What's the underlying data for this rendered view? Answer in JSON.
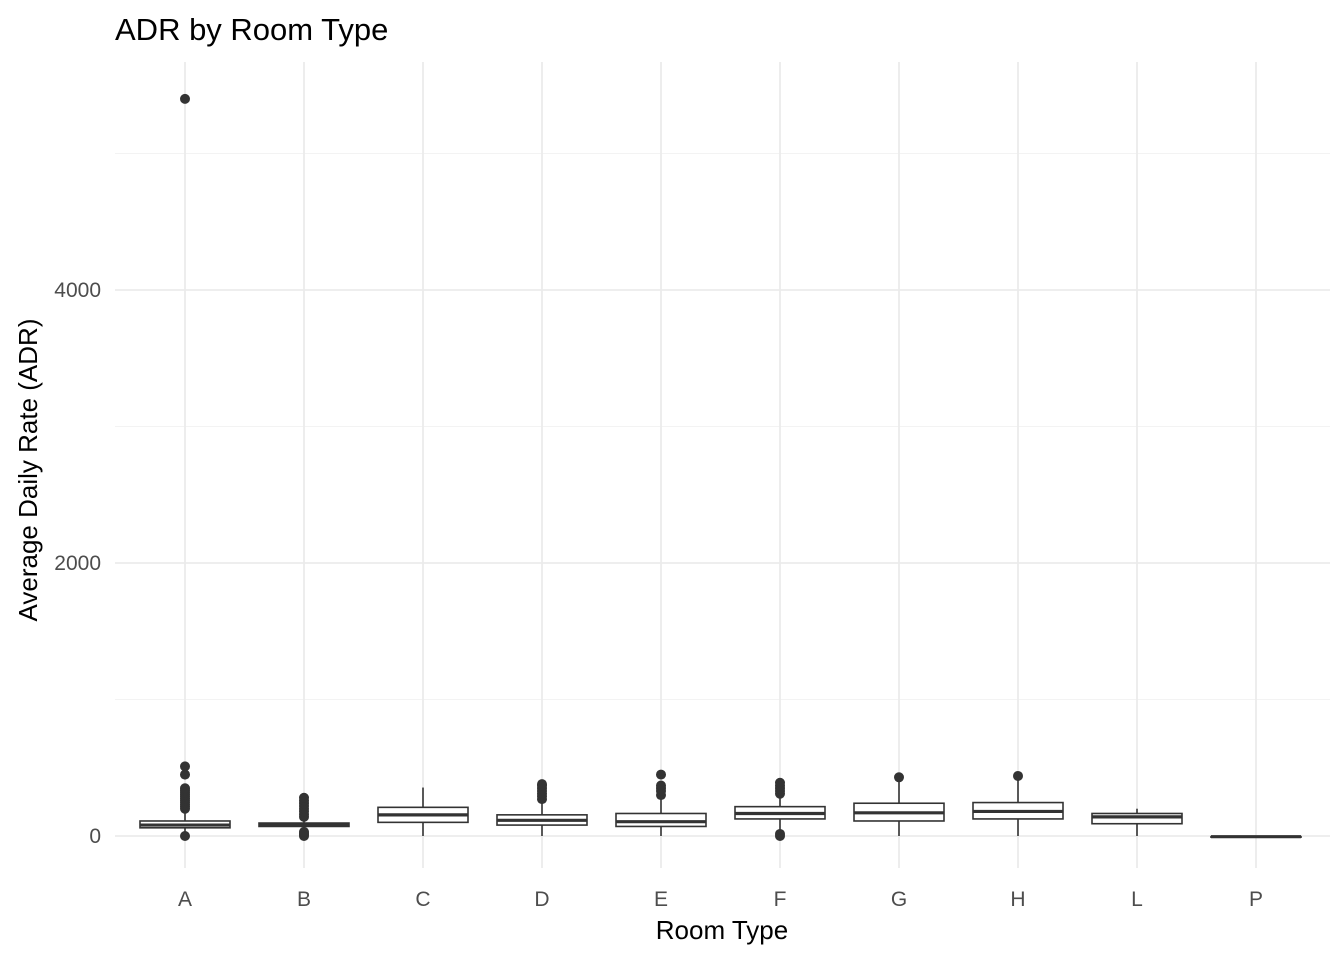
{
  "chart_data": {
    "type": "boxplot",
    "title": "ADR by Room Type",
    "xlabel": "Room Type",
    "ylabel": "Average Daily Rate (ADR)",
    "ylim": [
      -250,
      5400
    ],
    "yticks": [
      0,
      2000,
      4000
    ],
    "grid": true,
    "legend": "none",
    "categories": [
      "A",
      "B",
      "C",
      "D",
      "E",
      "F",
      "G",
      "H",
      "L",
      "P"
    ],
    "boxes": [
      {
        "category": "A",
        "whisker_low": 0,
        "q1": 60,
        "median": 80,
        "q3": 110,
        "whisker_high": 190,
        "outliers": [
          0,
          200,
          215,
          230,
          245,
          260,
          275,
          290,
          305,
          320,
          335,
          350,
          450,
          510,
          5400
        ]
      },
      {
        "category": "B",
        "whisker_low": 40,
        "q1": 70,
        "median": 82,
        "q3": 95,
        "whisker_high": 130,
        "outliers": [
          0,
          10,
          20,
          30,
          140,
          160,
          180,
          200,
          220,
          240,
          260,
          280
        ]
      },
      {
        "category": "C",
        "whisker_low": 0,
        "q1": 100,
        "median": 155,
        "q3": 210,
        "whisker_high": 355,
        "outliers": []
      },
      {
        "category": "D",
        "whisker_low": 0,
        "q1": 80,
        "median": 115,
        "q3": 155,
        "whisker_high": 260,
        "outliers": [
          270,
          290,
          310,
          330,
          350,
          370,
          380
        ]
      },
      {
        "category": "E",
        "whisker_low": 0,
        "q1": 70,
        "median": 105,
        "q3": 165,
        "whisker_high": 290,
        "outliers": [
          300,
          330,
          350,
          370,
          450
        ]
      },
      {
        "category": "F",
        "whisker_low": 20,
        "q1": 125,
        "median": 165,
        "q3": 215,
        "whisker_high": 300,
        "outliers": [
          0,
          15,
          310,
          330,
          350,
          370,
          390
        ]
      },
      {
        "category": "G",
        "whisker_low": 0,
        "q1": 110,
        "median": 170,
        "q3": 240,
        "whisker_high": 400,
        "outliers": [
          430
        ]
      },
      {
        "category": "H",
        "whisker_low": 0,
        "q1": 125,
        "median": 180,
        "q3": 245,
        "whisker_high": 410,
        "outliers": [
          440
        ]
      },
      {
        "category": "L",
        "whisker_low": 0,
        "q1": 90,
        "median": 140,
        "q3": 165,
        "whisker_high": 200,
        "outliers": []
      },
      {
        "category": "P",
        "whisker_low": -5,
        "q1": -5,
        "median": -5,
        "q3": -5,
        "whisker_high": -5,
        "outliers": []
      }
    ]
  }
}
